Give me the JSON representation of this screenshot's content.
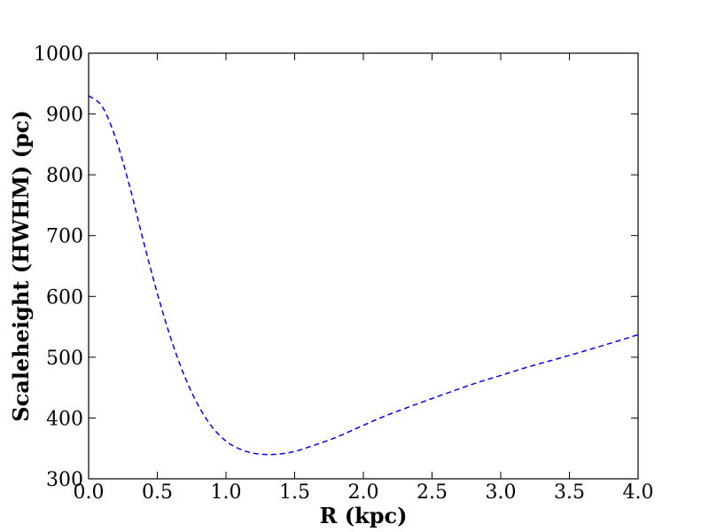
{
  "chart_data": {
    "type": "line",
    "title": "",
    "xlabel": "R (kpc)",
    "ylabel": "Scaleheight (HWHM) (pc)",
    "xlim": [
      0.0,
      4.0
    ],
    "ylim": [
      300,
      1000
    ],
    "x_ticks": [
      "0.0",
      "0.5",
      "1.0",
      "1.5",
      "2.0",
      "2.5",
      "3.0",
      "3.5",
      "4.0"
    ],
    "y_ticks": [
      "300",
      "400",
      "500",
      "600",
      "700",
      "800",
      "900",
      "1000"
    ],
    "grid": false,
    "legend": "none",
    "series": [
      {
        "color": "#0000ff",
        "linestyle": "dashed",
        "x": [
          0.0,
          0.1,
          0.2,
          0.3,
          0.4,
          0.5,
          0.6,
          0.7,
          0.8,
          0.9,
          1.0,
          1.1,
          1.2,
          1.3,
          1.4,
          1.5,
          1.6,
          1.8,
          2.0,
          2.2,
          2.5,
          2.8,
          3.0,
          3.2,
          3.5,
          3.8,
          4.0
        ],
        "y": [
          930,
          912,
          858,
          780,
          690,
          605,
          530,
          468,
          420,
          385,
          362,
          349,
          342,
          340,
          341,
          345,
          352,
          368,
          388,
          407,
          432,
          456,
          470,
          484,
          503,
          523,
          537
        ]
      }
    ]
  }
}
